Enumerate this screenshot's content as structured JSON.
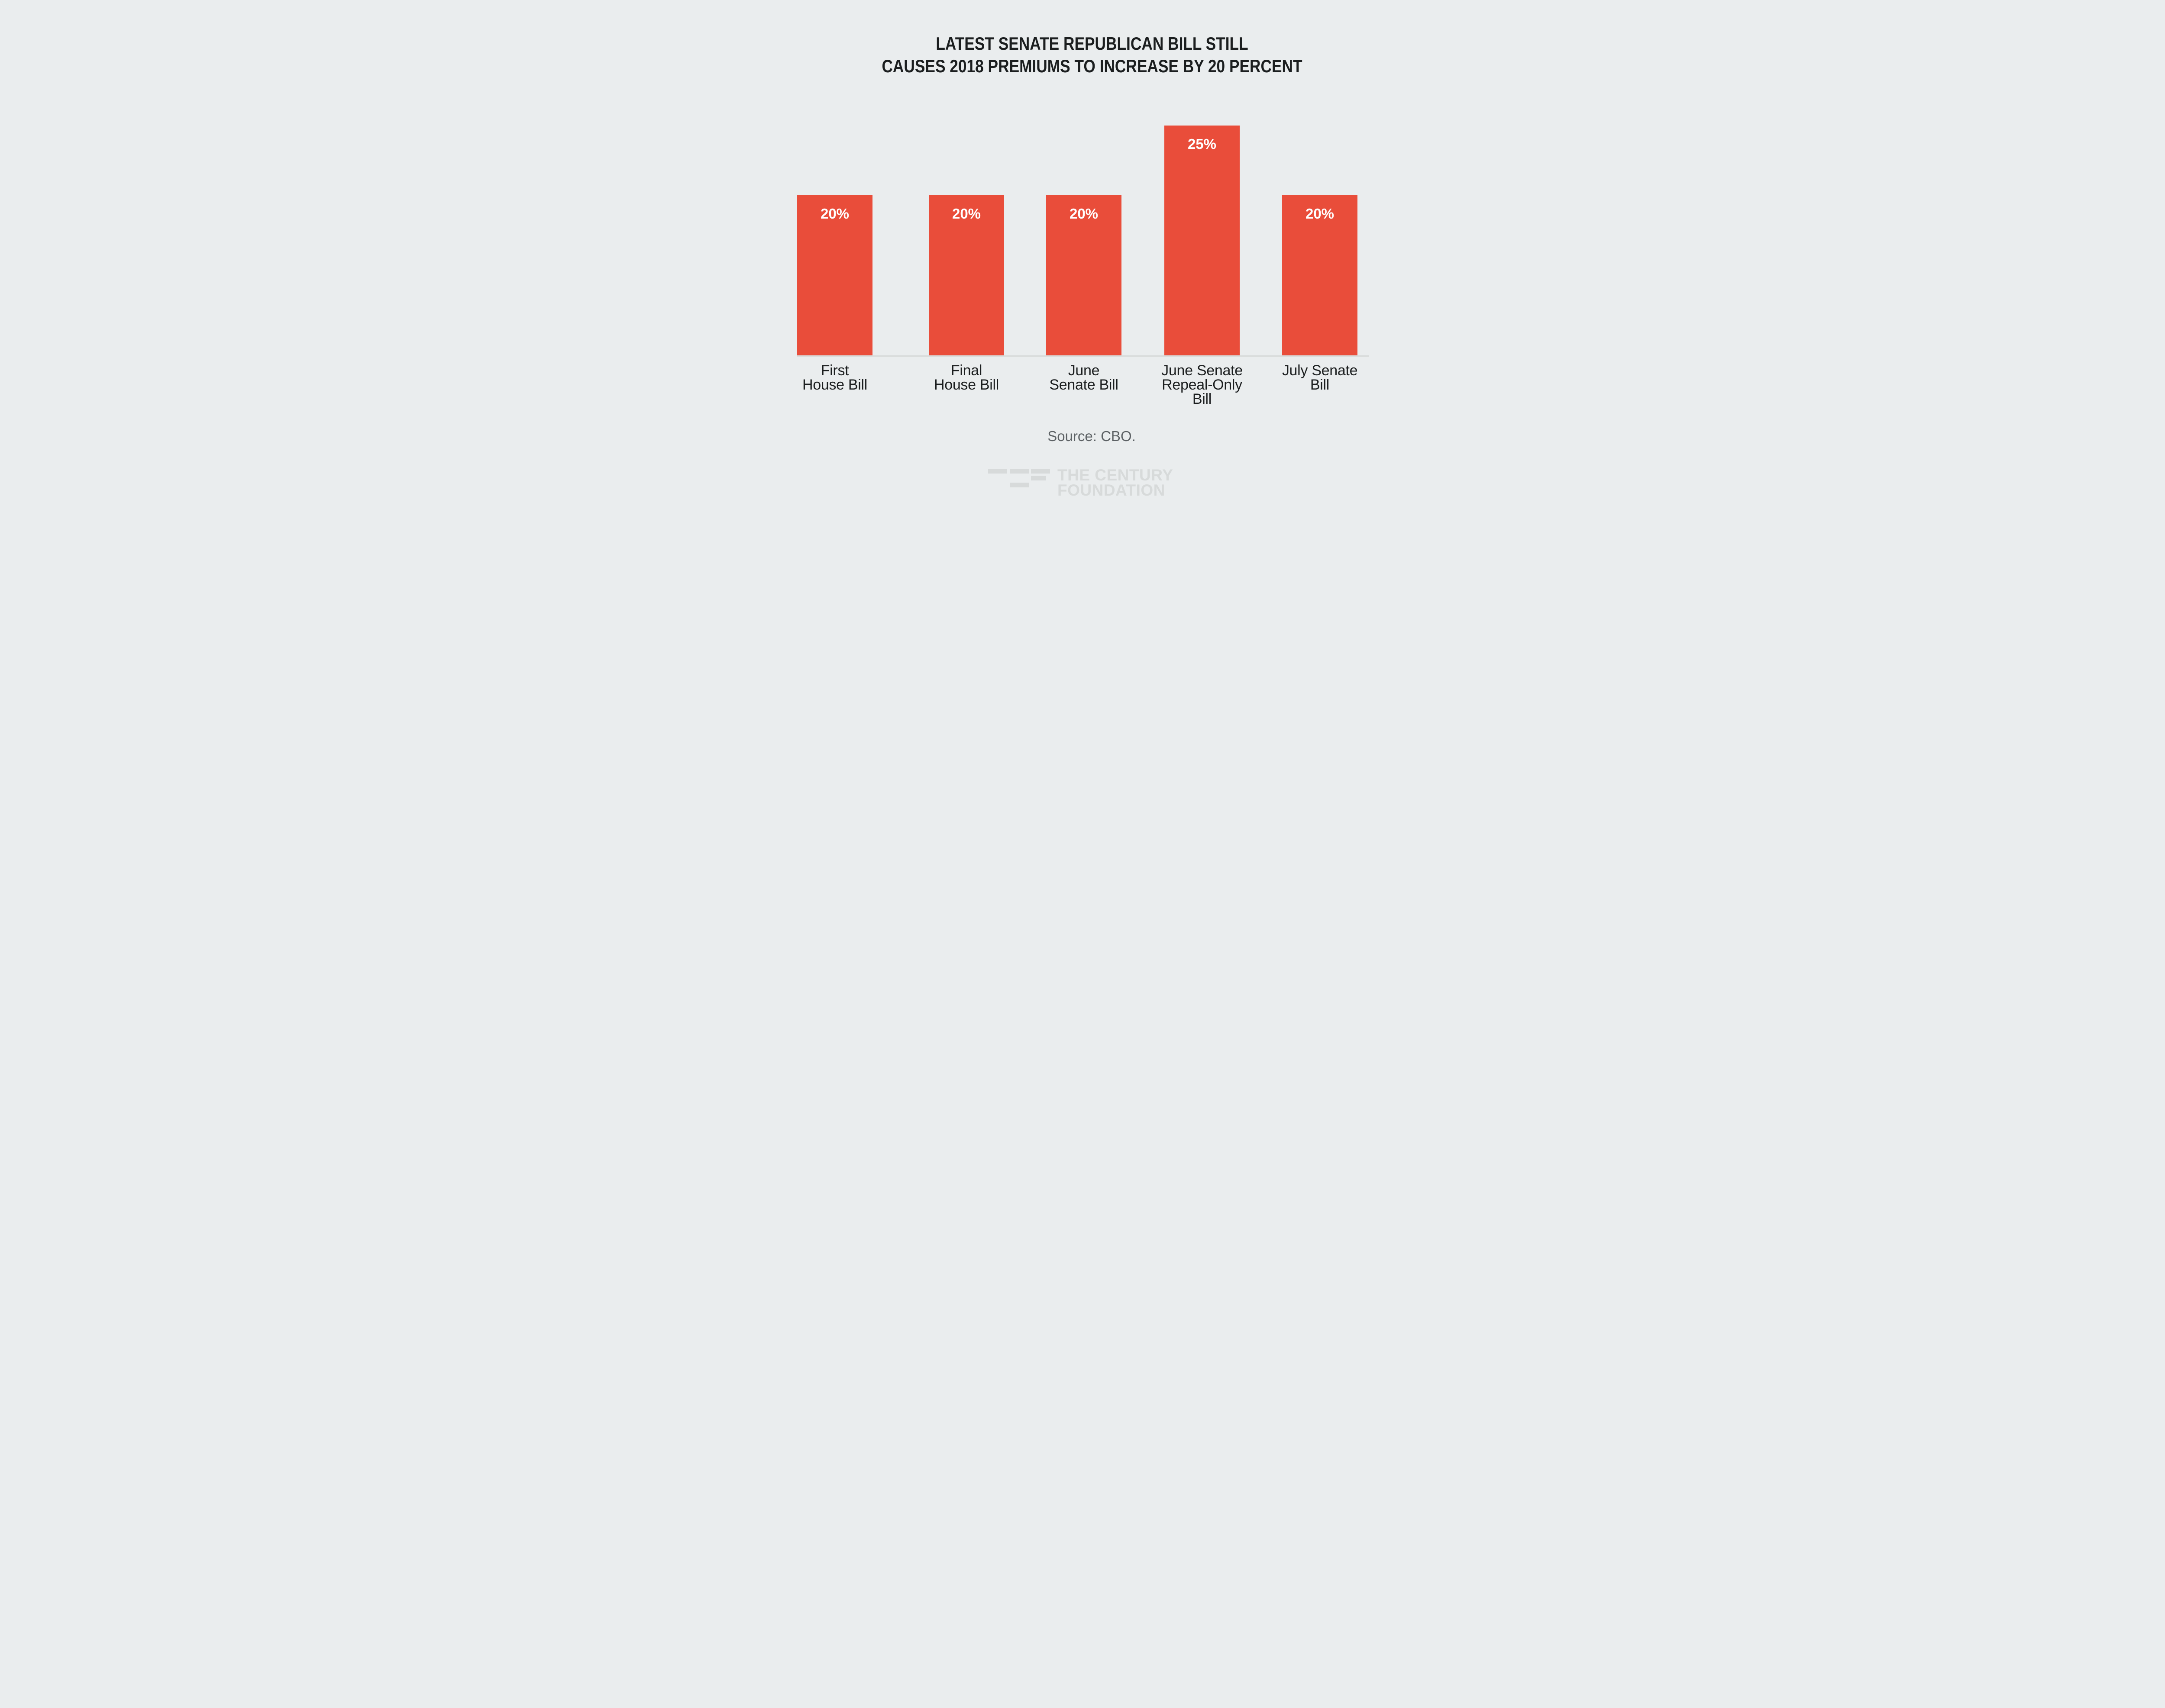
{
  "page": {
    "background_color": "#EAEDEE"
  },
  "title": {
    "line1": "LATEST SENATE REPUBLICAN BILL STILL",
    "line2": "CAUSES 2018 PREMIUMS TO INCREASE BY 20 PERCENT"
  },
  "bars": [
    {
      "name": "first-house-bill",
      "label_lines": [
        "First",
        "House Bill"
      ],
      "value": 20,
      "value_label": "20%"
    },
    {
      "name": "final-house-bill",
      "label_lines": [
        "Final",
        "House Bill"
      ],
      "value": 20,
      "value_label": "20%"
    },
    {
      "name": "june-senate-bill",
      "label_lines": [
        "June",
        "Senate Bill"
      ],
      "value": 20,
      "value_label": "20%"
    },
    {
      "name": "june-senate-repeal-only-bill",
      "label_lines": [
        "June Senate",
        "Repeal-Only",
        "Bill"
      ],
      "value": 25,
      "value_label": "25%"
    },
    {
      "name": "july-senate-bill",
      "label_lines": [
        "July Senate",
        "Bill"
      ],
      "value": 20,
      "value_label": "20%"
    }
  ],
  "source_note": "Source: CBO.",
  "logo": {
    "line1": "THE CENTURY",
    "line2": "FOUNDATION"
  },
  "colors": {
    "background": "#EAEDEE",
    "bar_fill": "#E94D3A",
    "bar_value_text": "#FFFFFF",
    "axis_line": "#D8DBDA",
    "title_text": "#1B1E1F",
    "category_text": "#1B1E1F",
    "source_text": "#5C6164",
    "logo_gray": "#D7DADA"
  },
  "chart_data": {
    "type": "bar",
    "title": "LATEST SENATE REPUBLICAN BILL STILL CAUSES 2018 PREMIUMS TO INCREASE BY 20 PERCENT",
    "categories": [
      "First House Bill",
      "Final House Bill",
      "June Senate Bill",
      "June Senate Repeal-Only Bill",
      "July Senate Bill"
    ],
    "values": [
      20,
      20,
      20,
      25,
      20
    ],
    "value_labels": [
      "20%",
      "20%",
      "20%",
      "25%",
      "20%"
    ],
    "unit": "percent increase in 2018 premiums",
    "xlabel": "",
    "ylabel": "",
    "ylim": [
      0,
      27
    ],
    "gridlines": false,
    "legend": false,
    "y_axis_ticks_shown": false,
    "value_label_position": "inside-top",
    "bar_color": "#E94D3A",
    "source": "Source: CBO."
  }
}
